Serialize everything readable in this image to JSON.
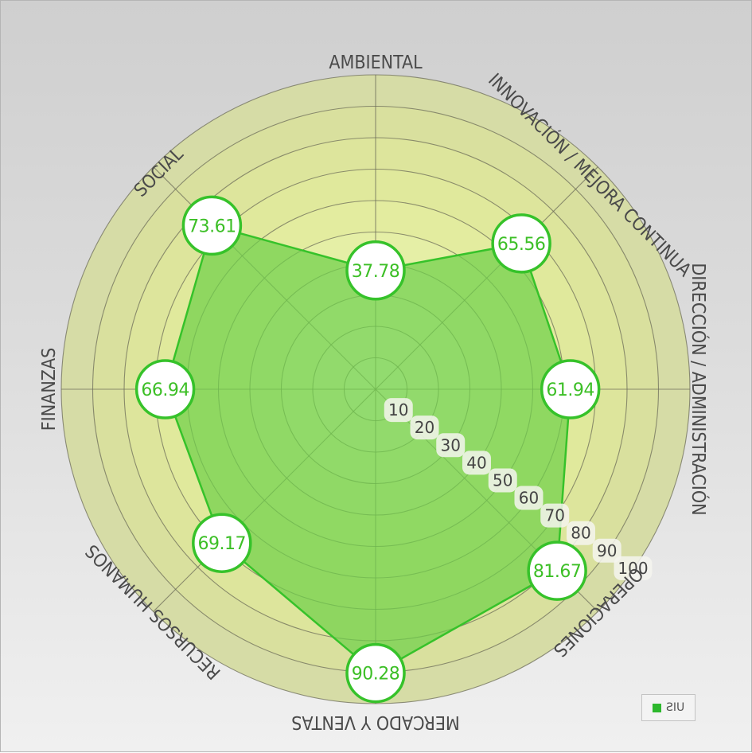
{
  "chart_data": {
    "type": "radar",
    "categories": [
      "AMBIENTAL",
      "INNOVACIÓN / MEJORA CONTINUA",
      "DIRECCIÓN / ADMINISTRACIÓN",
      "OPERACIONES",
      "MERCADO Y VENTAS",
      "RECURSOS HUMANOS",
      "FINANZAS",
      "SOCIAL"
    ],
    "series": [
      {
        "name": "UIS",
        "values": [
          37.78,
          65.56,
          61.94,
          81.67,
          90.28,
          69.17,
          66.94,
          73.61
        ],
        "labels": [
          "37.78",
          "65.56",
          "61.94",
          "81.67",
          "90.28",
          "69.17",
          "66.94",
          "73.61"
        ],
        "color": "#2db82d"
      }
    ],
    "rlim": [
      0,
      100
    ],
    "ticks": [
      10,
      20,
      30,
      40,
      50,
      60,
      70,
      80,
      90,
      100
    ],
    "tick_labels": [
      "10",
      "20",
      "30",
      "40",
      "50",
      "60",
      "70",
      "80",
      "90",
      "100"
    ],
    "grid": true,
    "legend": "bottom-right",
    "colors": {
      "fill": "#6fd04a",
      "stroke": "#36c22a",
      "value_text": "#3cbf26",
      "ring_outer": "#d5dca4",
      "ring_inner": "#e6f2b0"
    }
  },
  "legend": {
    "label": "UIS"
  }
}
